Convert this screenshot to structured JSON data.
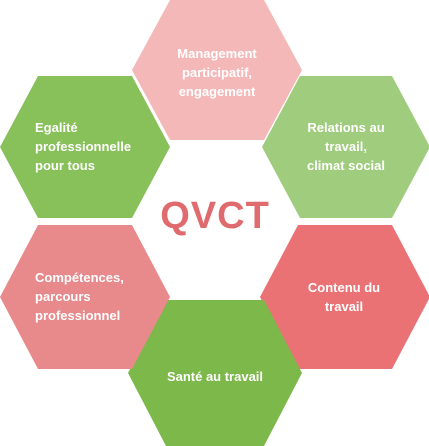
{
  "title": "QVCT",
  "colors": {
    "title": "#e06b6e",
    "pale_pink": "#f5b8b8",
    "pink": "#e8898c",
    "red": "#ea7275",
    "light_green": "#9fcc7d",
    "green": "#88c05a",
    "dark_green": "#7cb84a"
  },
  "hexagons": [
    {
      "id": "management",
      "label": "Management\nparticipatif,\nengagement",
      "color": "#f5b8b8"
    },
    {
      "id": "relations",
      "label": "Relations au\ntravail,\nclimat social",
      "color": "#9fcc7d"
    },
    {
      "id": "contenu",
      "label": "Contenu du\ntravail",
      "color": "#ea7275"
    },
    {
      "id": "sante",
      "label": "Santé au travail",
      "color": "#7cb84a"
    },
    {
      "id": "competences",
      "label": "Compétences,\nparcours\nprofessionnel",
      "color": "#e8898c"
    },
    {
      "id": "egalite",
      "label": "Egalité\nprofessionnelle\npour tous",
      "color": "#88c05a"
    }
  ]
}
